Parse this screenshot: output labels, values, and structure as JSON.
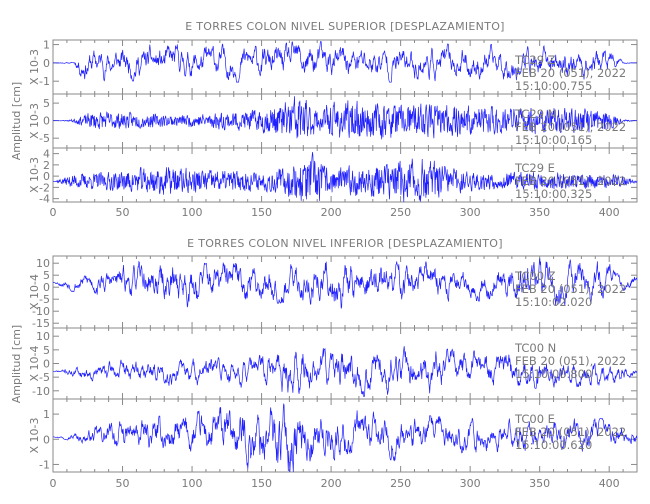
{
  "chart_data": [
    {
      "type": "line",
      "title": "E TORRES COLON NIVEL SUPERIOR [DESPLAZAMIENTO]",
      "ylabel": "Amplitud [cm]",
      "xlim": [
        0,
        420
      ],
      "xticks": [
        0,
        50,
        100,
        150,
        200,
        250,
        300,
        350,
        400
      ],
      "line_color": "#2020ff",
      "traces": [
        {
          "station": "TC29",
          "component": "Z",
          "date": "FEB 20 (051), 2022",
          "time": "15:10:00.755",
          "scale_label": "X 10-3",
          "ylim": [
            -1.7,
            1.25
          ],
          "yticks": [
            1,
            0,
            -1
          ],
          "baseline": 0.0,
          "envelope": [
            [
              0,
              0
            ],
            [
              15,
              0.05
            ],
            [
              20,
              0.8
            ],
            [
              170,
              0.9
            ],
            [
              178,
              1.1
            ],
            [
              200,
              0.9
            ],
            [
              400,
              0.8
            ],
            [
              410,
              0.05
            ],
            [
              420,
              0
            ]
          ],
          "smooth": 0.85,
          "seed": 11
        },
        {
          "station": "TC29",
          "component": "N",
          "date": "FEB 20 (051), 2022",
          "time": "15:10:00.165",
          "scale_label": "X 10-3",
          "ylim": [
            -7.8,
            7.6
          ],
          "yticks": [
            5,
            0,
            -5
          ],
          "baseline": 0.0,
          "envelope": [
            [
              0,
              0
            ],
            [
              12,
              0.2
            ],
            [
              30,
              2.5
            ],
            [
              90,
              1.5
            ],
            [
              150,
              3
            ],
            [
              165,
              4.5
            ],
            [
              175,
              7.5
            ],
            [
              190,
              3
            ],
            [
              205,
              5
            ],
            [
              300,
              4
            ],
            [
              400,
              3
            ],
            [
              410,
              0.3
            ],
            [
              420,
              0
            ]
          ],
          "smooth": 0.3,
          "seed": 23
        },
        {
          "station": "TC29",
          "component": "E",
          "date": "FEB 20 (051), 2022",
          "time": "15:10:00.325",
          "scale_label": "X 10-3",
          "ylim": [
            -4.6,
            5.0
          ],
          "yticks": [
            4,
            2,
            0,
            -2,
            -4
          ],
          "baseline": -0.9,
          "envelope": [
            [
              0,
              0
            ],
            [
              15,
              1.2
            ],
            [
              40,
              1.5
            ],
            [
              75,
              2.4
            ],
            [
              150,
              1.5
            ],
            [
              170,
              2.5
            ],
            [
              185,
              4.6
            ],
            [
              200,
              2
            ],
            [
              265,
              3.8
            ],
            [
              300,
              1.5
            ],
            [
              360,
              1.5
            ],
            [
              410,
              1
            ],
            [
              420,
              0.2
            ]
          ],
          "smooth": 0.3,
          "seed": 37
        }
      ]
    },
    {
      "type": "line",
      "title": "E TORRES COLON NIVEL INFERIOR [DESPLAZAMIENTO]",
      "ylabel": "Amplitud [cm]",
      "xlim": [
        0,
        420
      ],
      "xticks": [
        0,
        50,
        100,
        150,
        200,
        250,
        300,
        350,
        400
      ],
      "line_color": "#2020ff",
      "traces": [
        {
          "station": "TC00",
          "component": "Z",
          "date": "FEB 20 (051), 2022",
          "time": "15:10:02.020",
          "scale_label": "X 10-4",
          "ylim": [
            -17,
            13
          ],
          "yticks": [
            10,
            5,
            0,
            -5,
            -10,
            -15
          ],
          "baseline": 2,
          "envelope": [
            [
              0,
              0
            ],
            [
              12,
              3
            ],
            [
              50,
              6
            ],
            [
              80,
              9
            ],
            [
              170,
              7
            ],
            [
              200,
              10
            ],
            [
              300,
              6
            ],
            [
              340,
              9
            ],
            [
              400,
              7
            ],
            [
              405,
              3
            ],
            [
              420,
              3
            ]
          ],
          "smooth": 0.85,
          "seed": 53
        },
        {
          "station": "TC00",
          "component": "N",
          "date": "FEB 20 (051), 2022",
          "time": "15:10:00.800",
          "scale_label": "X 10-4",
          "ylim": [
            -13,
            13
          ],
          "yticks": [
            10,
            5,
            0,
            -5,
            -10
          ],
          "baseline": -3,
          "envelope": [
            [
              0,
              0
            ],
            [
              14,
              2
            ],
            [
              50,
              4
            ],
            [
              150,
              5
            ],
            [
              175,
              11
            ],
            [
              185,
              7
            ],
            [
              245,
              8
            ],
            [
              350,
              5
            ],
            [
              405,
              4
            ],
            [
              420,
              1
            ]
          ],
          "smooth": 0.85,
          "seed": 71
        },
        {
          "station": "TC00",
          "component": "E",
          "date": "FEB 20 (051), 2022",
          "time": "15:10:00.620",
          "scale_label": "X 10-3",
          "ylim": [
            -1.3,
            1.6
          ],
          "yticks": [
            1,
            0,
            -1
          ],
          "baseline": 0.1,
          "envelope": [
            [
              0,
              0
            ],
            [
              10,
              0.1
            ],
            [
              40,
              0.5
            ],
            [
              100,
              0.8
            ],
            [
              174,
              1.5
            ],
            [
              180,
              1
            ],
            [
              300,
              0.6
            ],
            [
              400,
              0.6
            ],
            [
              405,
              0.5
            ],
            [
              420,
              0.4
            ]
          ],
          "smooth": 0.85,
          "seed": 97
        }
      ]
    }
  ]
}
